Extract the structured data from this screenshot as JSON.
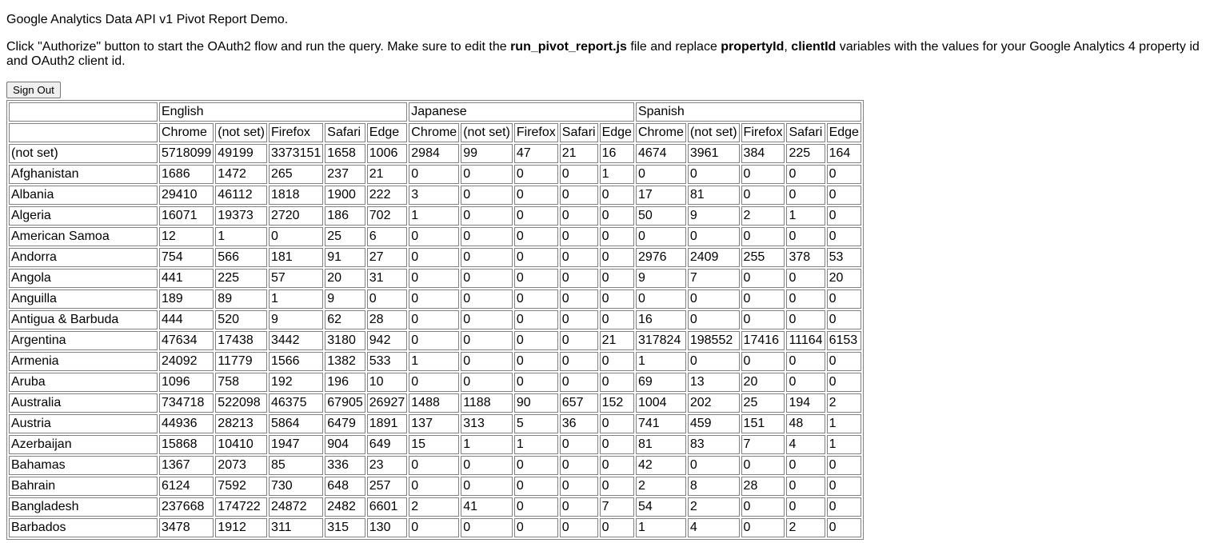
{
  "page": {
    "title": "Google Analytics Data API v1 Pivot Report Demo.",
    "intro": {
      "part1": "Click \"Authorize\" button to start the OAuth2 flow and run the query. Make sure to edit the ",
      "file_name": "run_pivot_report.js",
      "part2": " file and replace ",
      "var1": "propertyId",
      "sep": ", ",
      "var2": "clientId",
      "part3": " variables with the values for your Google Analytics 4 property id and OAuth2 client id."
    },
    "signout_label": "Sign Out"
  },
  "table": {
    "languages": [
      "English",
      "Japanese",
      "Spanish"
    ],
    "browsers": [
      "Chrome",
      "(not set)",
      "Firefox",
      "Safari",
      "Edge"
    ],
    "rows": [
      {
        "country": "(not set)",
        "values": [
          "5718099",
          "49199",
          "3373151",
          "1658",
          "1006",
          "2984",
          "99",
          "47",
          "21",
          "16",
          "4674",
          "3961",
          "384",
          "225",
          "164"
        ]
      },
      {
        "country": "Afghanistan",
        "values": [
          "1686",
          "1472",
          "265",
          "237",
          "21",
          "0",
          "0",
          "0",
          "0",
          "1",
          "0",
          "0",
          "0",
          "0",
          "0"
        ]
      },
      {
        "country": "Albania",
        "values": [
          "29410",
          "46112",
          "1818",
          "1900",
          "222",
          "3",
          "0",
          "0",
          "0",
          "0",
          "17",
          "81",
          "0",
          "0",
          "0"
        ]
      },
      {
        "country": "Algeria",
        "values": [
          "16071",
          "19373",
          "2720",
          "186",
          "702",
          "1",
          "0",
          "0",
          "0",
          "0",
          "50",
          "9",
          "2",
          "1",
          "0"
        ]
      },
      {
        "country": "American Samoa",
        "values": [
          "12",
          "1",
          "0",
          "25",
          "6",
          "0",
          "0",
          "0",
          "0",
          "0",
          "0",
          "0",
          "0",
          "0",
          "0"
        ]
      },
      {
        "country": "Andorra",
        "values": [
          "754",
          "566",
          "181",
          "91",
          "27",
          "0",
          "0",
          "0",
          "0",
          "0",
          "2976",
          "2409",
          "255",
          "378",
          "53"
        ]
      },
      {
        "country": "Angola",
        "values": [
          "441",
          "225",
          "57",
          "20",
          "31",
          "0",
          "0",
          "0",
          "0",
          "0",
          "9",
          "7",
          "0",
          "0",
          "20"
        ]
      },
      {
        "country": "Anguilla",
        "values": [
          "189",
          "89",
          "1",
          "9",
          "0",
          "0",
          "0",
          "0",
          "0",
          "0",
          "0",
          "0",
          "0",
          "0",
          "0"
        ]
      },
      {
        "country": "Antigua & Barbuda",
        "values": [
          "444",
          "520",
          "9",
          "62",
          "28",
          "0",
          "0",
          "0",
          "0",
          "0",
          "16",
          "0",
          "0",
          "0",
          "0"
        ]
      },
      {
        "country": "Argentina",
        "values": [
          "47634",
          "17438",
          "3442",
          "3180",
          "942",
          "0",
          "0",
          "0",
          "0",
          "21",
          "317824",
          "198552",
          "17416",
          "11164",
          "6153"
        ]
      },
      {
        "country": "Armenia",
        "values": [
          "24092",
          "11779",
          "1566",
          "1382",
          "533",
          "1",
          "0",
          "0",
          "0",
          "0",
          "1",
          "0",
          "0",
          "0",
          "0"
        ]
      },
      {
        "country": "Aruba",
        "values": [
          "1096",
          "758",
          "192",
          "196",
          "10",
          "0",
          "0",
          "0",
          "0",
          "0",
          "69",
          "13",
          "20",
          "0",
          "0"
        ]
      },
      {
        "country": "Australia",
        "values": [
          "734718",
          "522098",
          "46375",
          "67905",
          "26927",
          "1488",
          "1188",
          "90",
          "657",
          "152",
          "1004",
          "202",
          "25",
          "194",
          "2"
        ]
      },
      {
        "country": "Austria",
        "values": [
          "44936",
          "28213",
          "5864",
          "6479",
          "1891",
          "137",
          "313",
          "5",
          "36",
          "0",
          "741",
          "459",
          "151",
          "48",
          "1"
        ]
      },
      {
        "country": "Azerbaijan",
        "values": [
          "15868",
          "10410",
          "1947",
          "904",
          "649",
          "15",
          "1",
          "1",
          "0",
          "0",
          "81",
          "83",
          "7",
          "4",
          "1"
        ]
      },
      {
        "country": "Bahamas",
        "values": [
          "1367",
          "2073",
          "85",
          "336",
          "23",
          "0",
          "0",
          "0",
          "0",
          "0",
          "42",
          "0",
          "0",
          "0",
          "0"
        ]
      },
      {
        "country": "Bahrain",
        "values": [
          "6124",
          "7592",
          "730",
          "648",
          "257",
          "0",
          "0",
          "0",
          "0",
          "0",
          "2",
          "8",
          "28",
          "0",
          "0"
        ]
      },
      {
        "country": "Bangladesh",
        "values": [
          "237668",
          "174722",
          "24872",
          "2482",
          "6601",
          "2",
          "41",
          "0",
          "0",
          "7",
          "54",
          "2",
          "0",
          "0",
          "0"
        ]
      },
      {
        "country": "Barbados",
        "values": [
          "3478",
          "1912",
          "311",
          "315",
          "130",
          "0",
          "0",
          "0",
          "0",
          "0",
          "1",
          "4",
          "0",
          "2",
          "0"
        ]
      }
    ]
  }
}
